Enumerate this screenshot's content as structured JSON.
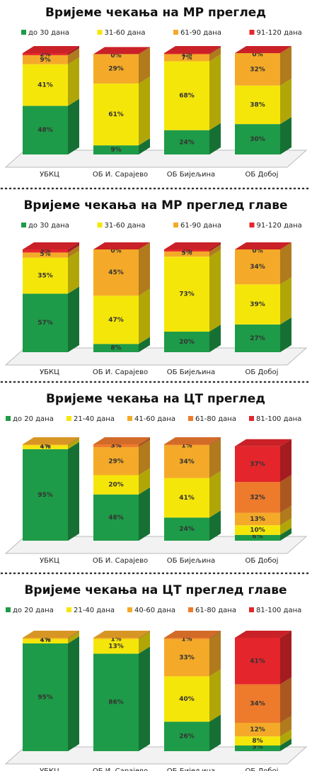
{
  "chart_data": [
    {
      "type": "bar3d-stacked",
      "title": "Вријеме чекања на МР преглед",
      "categories": [
        "УБКЦ",
        "ОБ И. Сарајево",
        "ОБ Бијељина",
        "ОБ Добој"
      ],
      "series": [
        {
          "name": "до 30 дана",
          "color": "#1e9b48",
          "values": [
            48,
            9,
            24,
            30
          ],
          "value_labels": [
            "48%",
            "9%",
            "24%",
            "30%"
          ]
        },
        {
          "name": "31-60 дана",
          "color": "#f5e60a",
          "values": [
            41,
            61,
            68,
            38
          ],
          "value_labels": [
            "41%",
            "61%",
            "68%",
            "38%"
          ]
        },
        {
          "name": "61-90 дана",
          "color": "#f4aa28",
          "values": [
            9,
            29,
            7,
            32
          ],
          "value_labels": [
            "9%",
            "29%",
            "7%",
            "32%"
          ]
        },
        {
          "name": "91-120 дана",
          "color": "#e4262c",
          "values": [
            2,
            0,
            1,
            0
          ],
          "value_labels": [
            "2%",
            "0%",
            "1%",
            "0%"
          ]
        }
      ]
    },
    {
      "type": "bar3d-stacked",
      "title": "Вријеме чекања на МР преглед главе",
      "categories": [
        "УБКЦ",
        "ОБ И. Сарајево",
        "ОБ Бијељина",
        "ОБ Добој"
      ],
      "series": [
        {
          "name": "до 30 дана",
          "color": "#1e9b48",
          "values": [
            57,
            8,
            20,
            27
          ],
          "value_labels": [
            "57%",
            "8%",
            "20%",
            "27%"
          ]
        },
        {
          "name": "31-60 дана",
          "color": "#f5e60a",
          "values": [
            35,
            47,
            73,
            39
          ],
          "value_labels": [
            "35%",
            "47%",
            "73%",
            "39%"
          ]
        },
        {
          "name": "61-90 дана",
          "color": "#f4aa28",
          "values": [
            5,
            45,
            5,
            34
          ],
          "value_labels": [
            "5%",
            "45%",
            "5%",
            "34%"
          ]
        },
        {
          "name": "91-120 дана",
          "color": "#e4262c",
          "values": [
            3,
            0,
            2,
            0
          ],
          "value_labels": [
            "3%",
            "0%",
            "2%",
            "0%"
          ]
        }
      ]
    },
    {
      "type": "bar3d-stacked",
      "title": "Вријеме чекања на ЦТ преглед",
      "categories": [
        "УБКЦ",
        "ОБ И. Сарајево",
        "ОБ Бијељина",
        "ОБ Добој"
      ],
      "series": [
        {
          "name": "до 20 дана",
          "color": "#1e9b48",
          "values": [
            95,
            48,
            24,
            6
          ],
          "value_labels": [
            "95%",
            "48%",
            "24%",
            "6%"
          ]
        },
        {
          "name": "21-40 дана",
          "color": "#f5e60a",
          "values": [
            4,
            20,
            41,
            10
          ],
          "value_labels": [
            "4%",
            "20%",
            "41%",
            "10%"
          ]
        },
        {
          "name": "41-60 дана",
          "color": "#f4aa28",
          "values": [
            1,
            29,
            34,
            13
          ],
          "value_labels": [
            "1%",
            "29%",
            "34%",
            "13%"
          ]
        },
        {
          "name": "61-80 дана",
          "color": "#ee7a2c",
          "values": [
            null,
            3,
            1,
            32
          ],
          "value_labels": [
            null,
            "3%",
            "1%",
            "32%"
          ]
        },
        {
          "name": "81-100 дана",
          "color": "#e4262c",
          "values": [
            null,
            null,
            null,
            37
          ],
          "value_labels": [
            null,
            null,
            null,
            "37%"
          ]
        }
      ]
    },
    {
      "type": "bar3d-stacked",
      "title": "Вријеме чекања на ЦТ преглед главе",
      "categories": [
        "УБКЦ",
        "ОБ И. Сарајево",
        "ОБ Бијељина",
        "ОБ Добој"
      ],
      "series": [
        {
          "name": "до 20 дана",
          "color": "#1e9b48",
          "values": [
            95,
            86,
            26,
            5
          ],
          "value_labels": [
            "95%",
            "86%",
            "26%",
            "5%"
          ]
        },
        {
          "name": "21-40 дана",
          "color": "#f5e60a",
          "values": [
            4,
            13,
            40,
            8
          ],
          "value_labels": [
            "4%",
            "13%",
            "40%",
            "8%"
          ]
        },
        {
          "name": "40-60 дана",
          "color": "#f4aa28",
          "values": [
            1,
            1,
            33,
            12
          ],
          "value_labels": [
            "1%",
            "1%",
            "33%",
            "12%"
          ]
        },
        {
          "name": "61-80 дана",
          "color": "#ee7a2c",
          "values": [
            null,
            null,
            1,
            34
          ],
          "value_labels": [
            null,
            null,
            "1%",
            "34%"
          ]
        },
        {
          "name": "81-100 дана",
          "color": "#e4262c",
          "values": [
            null,
            null,
            null,
            41
          ],
          "value_labels": [
            null,
            null,
            null,
            "41%"
          ]
        }
      ]
    }
  ]
}
